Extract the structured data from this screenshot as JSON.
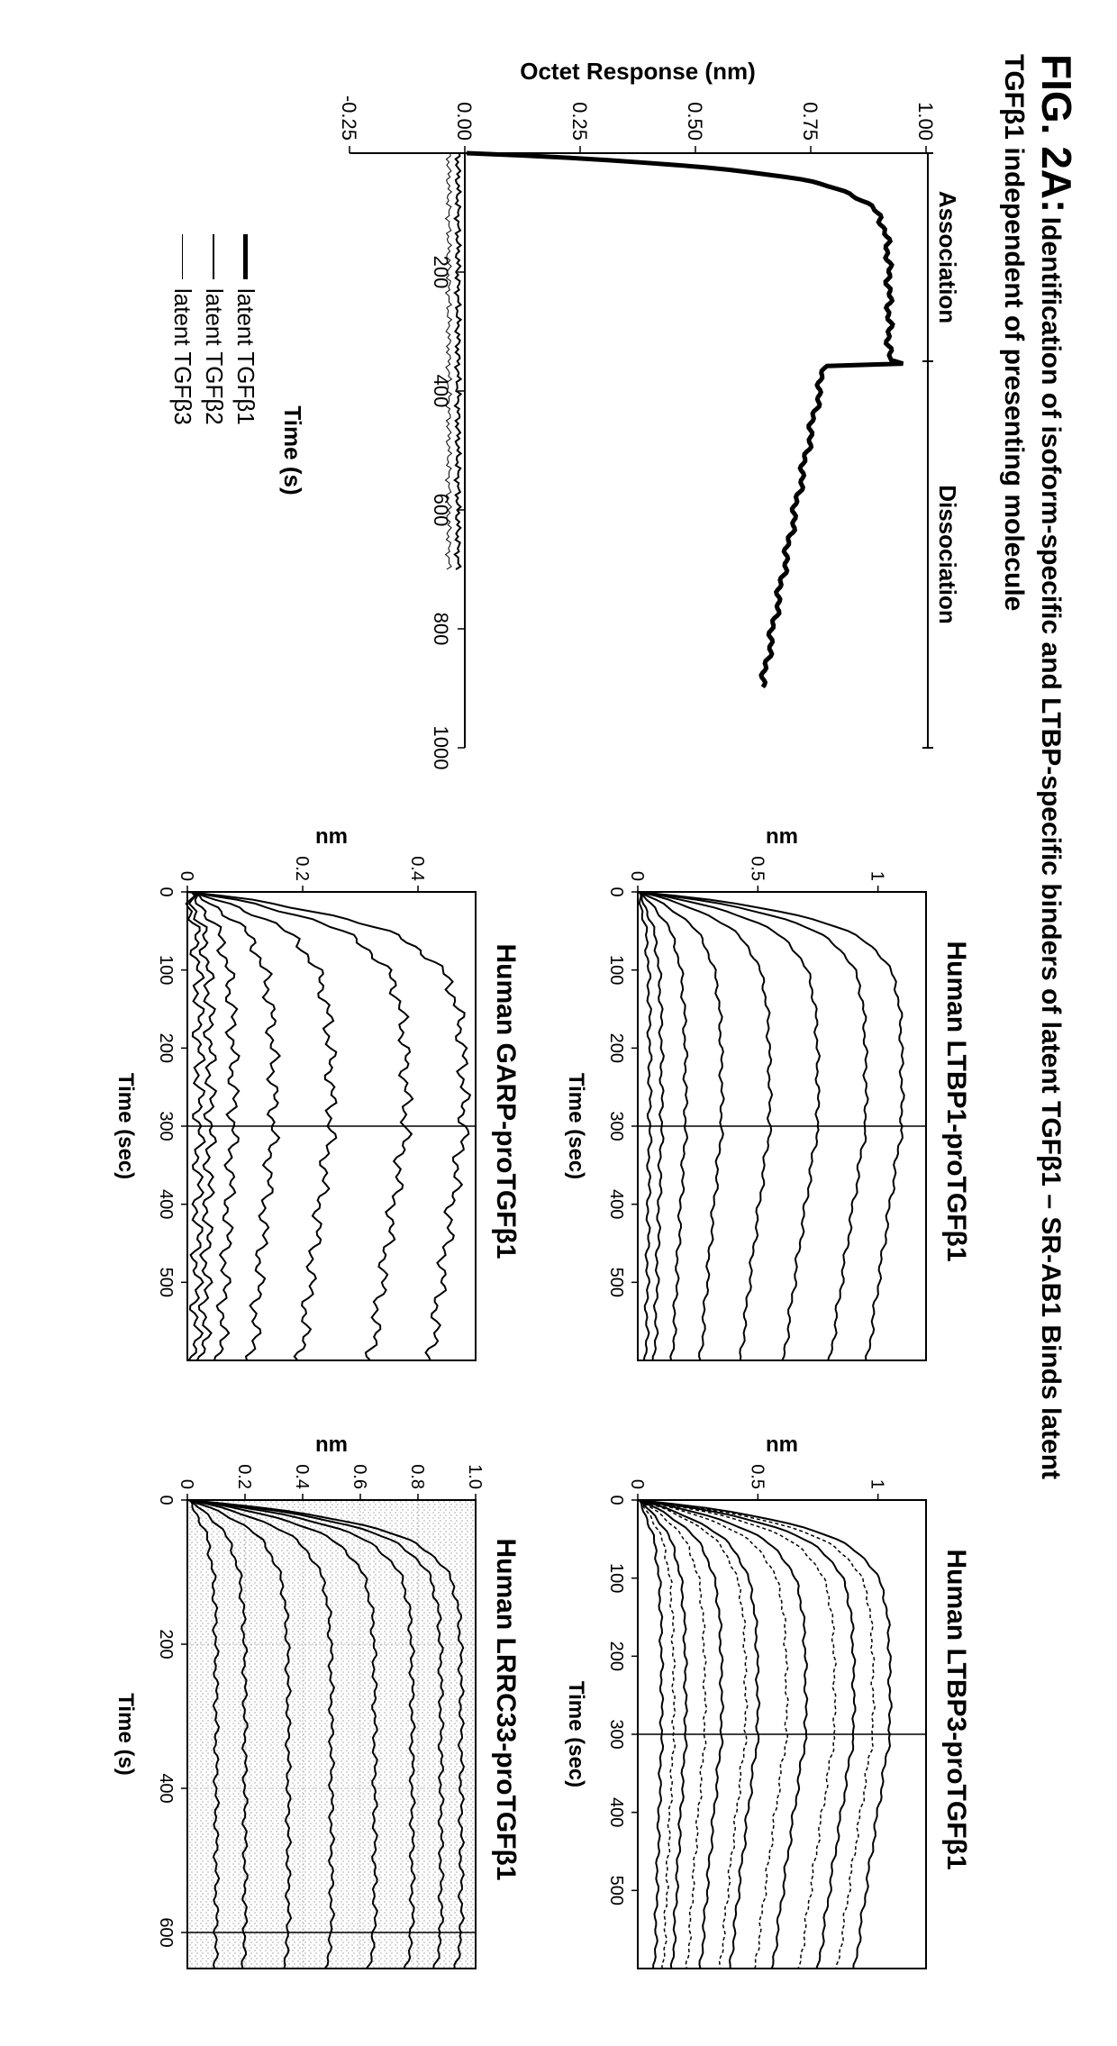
{
  "figure": {
    "label": "FIG. 2A:",
    "title": "Identification of isoform-specific and LTBP-specific binders of latent TGFβ1 – SR-AB1 Binds latent",
    "subtitle": "TGFβ1 independent of presenting molecule"
  },
  "main_chart": {
    "type": "line",
    "ylabel": "Octet Response (nm)",
    "xlabel": "Time (s)",
    "phase_assoc": "Association",
    "phase_dissoc": "Dissociation",
    "xlim": [
      0,
      1000
    ],
    "ylim": [
      -0.25,
      1.0
    ],
    "xticks": [
      200,
      400,
      600,
      800,
      1000
    ],
    "yticks": [
      "-0.25",
      "0.00",
      "0.25",
      "0.50",
      "0.75",
      "1.00"
    ],
    "ytick_vals": [
      -0.25,
      0.0,
      0.25,
      0.5,
      0.75,
      1.0
    ],
    "phase_marker_x": 350,
    "trace_colors": {
      "tgfb1": "#000000",
      "tgfb2": "#000000",
      "tgfb3": "#000000"
    },
    "trace_widths": {
      "tgfb1": 5,
      "tgfb2": 2,
      "tgfb3": 1
    },
    "legend": [
      {
        "label": "latent TGFβ1",
        "width": 5
      },
      {
        "label": "latent TGFβ2",
        "width": 2
      },
      {
        "label": "latent TGFβ3",
        "width": 1
      }
    ],
    "background_color": "#ffffff",
    "axis_color": "#000000",
    "label_fontsize": 26
  },
  "small_charts": {
    "common": {
      "ylabel": "nm",
      "xlabel": "Time (sec)",
      "xlabel_alt": "Time (s)",
      "xlim": [
        0,
        600
      ],
      "xticks": [
        0,
        100,
        200,
        300,
        400,
        500
      ],
      "divider_x": 300,
      "trace_color": "#000000",
      "background_color": "#ffffff",
      "axis_color": "#000000"
    },
    "ltbp1": {
      "title": "Human LTBP1-proTGFβ1",
      "ylim": [
        0,
        1.2
      ],
      "yticks": [
        0,
        0.5,
        1
      ],
      "ytick_labels": [
        "0",
        "0.5",
        "1"
      ],
      "plateaus": [
        0.05,
        0.1,
        0.2,
        0.35,
        0.55,
        0.75,
        0.95,
        1.1
      ],
      "trace_widths": [
        2,
        2,
        2,
        2,
        2,
        2,
        2,
        2
      ],
      "dashed_runs": []
    },
    "ltbp3": {
      "title": "Human LTBP3-proTGFβ1",
      "ylim": [
        0,
        1.2
      ],
      "yticks": [
        0,
        0.5,
        1
      ],
      "ytick_labels": [
        "0",
        "0.5",
        "1"
      ],
      "plateaus": [
        0.1,
        0.2,
        0.35,
        0.5,
        0.7,
        0.9,
        1.05
      ],
      "trace_widths": [
        2,
        2,
        2,
        2,
        2,
        2,
        2
      ],
      "dashed_runs": [
        0.15,
        0.28,
        0.45,
        0.62,
        0.82,
        0.98
      ]
    },
    "garp": {
      "title": "Human GARP-proTGFβ1",
      "ylim": [
        0,
        0.5
      ],
      "yticks": [
        0,
        0.2,
        0.4
      ],
      "ytick_labels": [
        "0",
        "0.2",
        "0.4"
      ],
      "plateaus": [
        0.02,
        0.04,
        0.08,
        0.15,
        0.25,
        0.38,
        0.48
      ],
      "trace_widths": [
        2,
        2,
        2,
        2,
        2,
        2,
        2
      ],
      "dashed_runs": []
    },
    "lrrc33": {
      "title": "Human LRRC33-proTGFβ1",
      "xlabel": "Time (s)",
      "xlim": [
        0,
        650
      ],
      "xticks": [
        0,
        200,
        400,
        600
      ],
      "ylim": [
        0,
        1.0
      ],
      "yticks": [
        0,
        0.2,
        0.4,
        0.6,
        0.8,
        1.0
      ],
      "ytick_labels": [
        "0",
        "0.2",
        "0.4",
        "0.6",
        "0.8",
        "1.0"
      ],
      "divider_x": 600,
      "plateaus": [
        0.1,
        0.2,
        0.35,
        0.5,
        0.65,
        0.78,
        0.88,
        0.95
      ],
      "trace_widths": [
        2,
        2,
        2,
        2,
        2,
        2,
        2,
        2
      ],
      "stipple": true
    }
  }
}
